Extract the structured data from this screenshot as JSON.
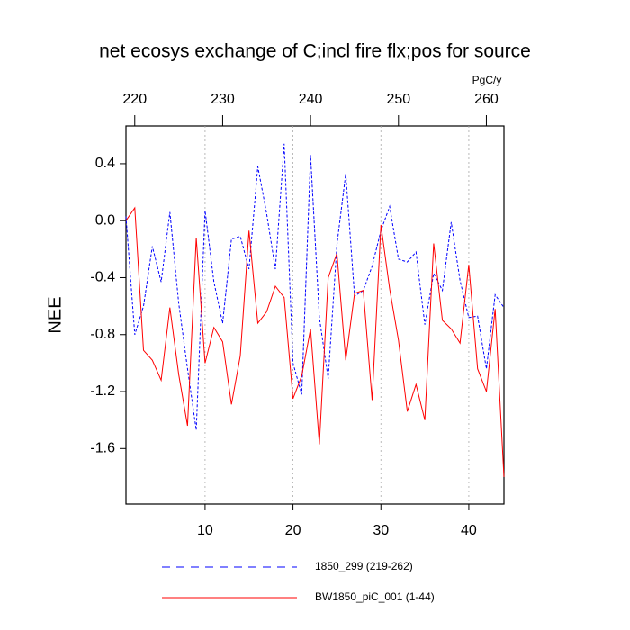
{
  "chart_data": {
    "type": "line",
    "title": "net ecosys exchange of C;incl fire flx;pos for source",
    "ylabel": "NEE",
    "x2label": "PgC/y",
    "xlim": [
      1,
      44
    ],
    "xticks": [
      10,
      20,
      30,
      40
    ],
    "xtick_color": "#ff0000",
    "x2lim": [
      219,
      262
    ],
    "x2ticks": [
      220,
      230,
      240,
      250,
      260
    ],
    "x2tick_color": "#0000ff",
    "ylim": [
      -1.99,
      0.665
    ],
    "yticks": [
      0.4,
      {
        "value": 0,
        "label": "0.0"
      },
      -0.4,
      -0.8,
      -1.2,
      -1.6
    ],
    "xgrid": true,
    "series": [
      {
        "name": "1850_299 (219-262)",
        "color": "#0000ff",
        "dash": true,
        "axis": "x2",
        "x": [
          219,
          220,
          221,
          222,
          223,
          224,
          225,
          226,
          227,
          228,
          229,
          230,
          231,
          232,
          233,
          234,
          235,
          236,
          237,
          238,
          239,
          240,
          241,
          242,
          243,
          244,
          245,
          246,
          247,
          248,
          249,
          250,
          251,
          252,
          253,
          254,
          255,
          256,
          257,
          258,
          259,
          260,
          261,
          262
        ],
        "values": [
          0.03,
          -0.8,
          -0.6,
          -0.18,
          -0.43,
          0.06,
          -0.58,
          -1.04,
          -1.47,
          0.07,
          -0.43,
          -0.72,
          -0.13,
          -0.11,
          -0.34,
          0.38,
          0.05,
          -0.34,
          0.54,
          -1.0,
          -1.22,
          0.46,
          -0.68,
          -1.11,
          -0.17,
          0.33,
          -0.53,
          -0.49,
          -0.32,
          -0.07,
          0.1,
          -0.27,
          -0.29,
          -0.22,
          -0.73,
          -0.37,
          -0.49,
          -0.01,
          -0.42,
          -0.68,
          -0.67,
          -1.04,
          -0.52,
          -0.61
        ]
      },
      {
        "name": "BW1850_piC_001 (1-44)",
        "color": "#ff0000",
        "dash": false,
        "axis": "x",
        "x": [
          1,
          2,
          3,
          4,
          5,
          6,
          7,
          8,
          9,
          10,
          11,
          12,
          13,
          14,
          15,
          16,
          17,
          18,
          19,
          20,
          21,
          22,
          23,
          24,
          25,
          26,
          27,
          28,
          29,
          30,
          31,
          32,
          33,
          34,
          35,
          36,
          37,
          38,
          39,
          40,
          41,
          42,
          43,
          44
        ],
        "values": [
          0.0,
          0.09,
          -0.91,
          -0.98,
          -1.12,
          -0.61,
          -1.08,
          -1.44,
          -0.12,
          -1.0,
          -0.75,
          -0.85,
          -1.29,
          -0.95,
          -0.07,
          -0.72,
          -0.64,
          -0.46,
          -0.54,
          -1.25,
          -1.09,
          -0.76,
          -1.57,
          -0.4,
          -0.23,
          -0.98,
          -0.51,
          -0.49,
          -1.26,
          -0.03,
          -0.48,
          -0.84,
          -1.34,
          -1.15,
          -1.4,
          -0.16,
          -0.7,
          -0.76,
          -0.86,
          -0.31,
          -1.04,
          -1.2,
          -0.62,
          -1.8
        ]
      }
    ]
  }
}
